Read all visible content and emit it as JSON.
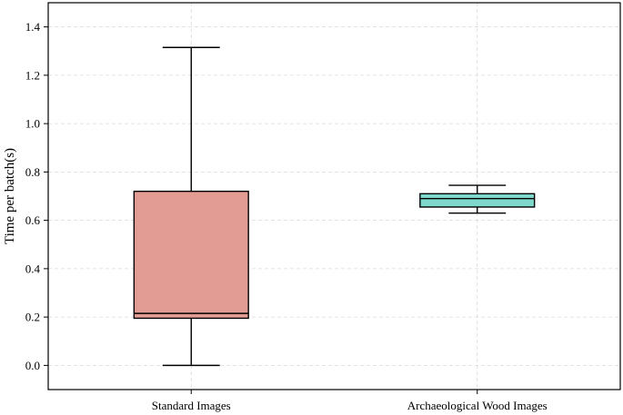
{
  "chart_data": {
    "type": "box",
    "title": "",
    "xlabel": "",
    "ylabel": "Time per batch(s)",
    "ylim": [
      -0.1,
      1.5
    ],
    "yticks": [
      0.0,
      0.2,
      0.4,
      0.6,
      0.8,
      1.0,
      1.2,
      1.4
    ],
    "ytick_labels": [
      "0.0",
      "0.2",
      "0.4",
      "0.6",
      "0.8",
      "1.0",
      "1.2",
      "1.4"
    ],
    "grid": true,
    "categories": [
      "Standard Images",
      "Archaeological Wood Images"
    ],
    "boxes": [
      {
        "category": "Standard Images",
        "min": 0.0,
        "q1": 0.195,
        "median": 0.215,
        "q3": 0.72,
        "max": 1.315,
        "color": "#e39c94"
      },
      {
        "category": "Archaeological Wood Images",
        "min": 0.63,
        "q1": 0.655,
        "median": 0.69,
        "q3": 0.71,
        "max": 0.745,
        "color": "#7ed9cc"
      }
    ]
  }
}
